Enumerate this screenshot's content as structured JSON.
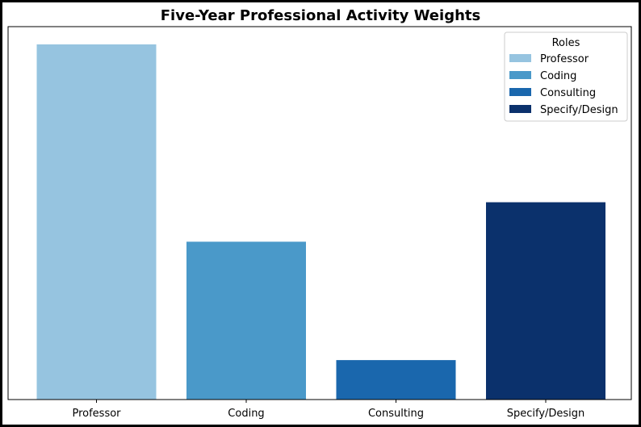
{
  "chart_data": {
    "type": "bar",
    "title": "Five-Year Professional Activity Weights",
    "xlabel": "",
    "ylabel": "",
    "categories": [
      "Professor",
      "Coding",
      "Consulting",
      "Specify/Design"
    ],
    "values": [
      45,
      20,
      5,
      25
    ],
    "colors": [
      "#96c4e0",
      "#4a99c9",
      "#1a67ad",
      "#0b316c"
    ],
    "ylim": [
      0,
      47.25
    ],
    "show_y_ticks": false,
    "grid": false,
    "legend": {
      "title": "Roles",
      "placement": "top-right",
      "entries": [
        "Professor",
        "Coding",
        "Consulting",
        "Specify/Design"
      ]
    }
  }
}
